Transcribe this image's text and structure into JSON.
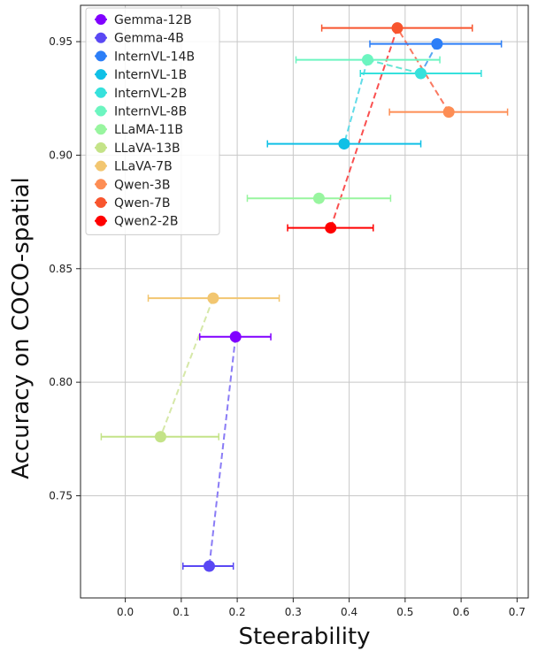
{
  "chart_data": {
    "type": "scatter",
    "title": "",
    "xlabel": "Steerability",
    "ylabel": "Accuracy on COCO-spatial",
    "xlim": [
      -0.08,
      0.72
    ],
    "ylim": [
      0.705,
      0.966
    ],
    "xticks": [
      0.0,
      0.1,
      0.2,
      0.3,
      0.4,
      0.5,
      0.6,
      0.7
    ],
    "xtick_labels": [
      "0.0",
      "0.1",
      "0.2",
      "0.3",
      "0.4",
      "0.5",
      "0.6",
      "0.7"
    ],
    "yticks": [
      0.75,
      0.8,
      0.85,
      0.9,
      0.95
    ],
    "ytick_labels": [
      "0.75",
      "0.80",
      "0.85",
      "0.90",
      "0.95"
    ],
    "grid": true,
    "legend_position": "top-left",
    "series": [
      {
        "name": "Gemma-12B",
        "color": "#8000ff",
        "x": 0.197,
        "y": 0.82,
        "xerr_low": 0.133,
        "xerr_high": 0.26
      },
      {
        "name": "Gemma-4B",
        "color": "#5a48f4",
        "x": 0.15,
        "y": 0.719,
        "xerr_low": 0.103,
        "xerr_high": 0.193
      },
      {
        "name": "InternVL-14B",
        "color": "#2c7ef7",
        "x": 0.557,
        "y": 0.949,
        "xerr_low": 0.437,
        "xerr_high": 0.672
      },
      {
        "name": "InternVL-1B",
        "color": "#10c0e6",
        "x": 0.391,
        "y": 0.905,
        "xerr_low": 0.254,
        "xerr_high": 0.528
      },
      {
        "name": "InternVL-2B",
        "color": "#36e1dc",
        "x": 0.528,
        "y": 0.936,
        "xerr_low": 0.42,
        "xerr_high": 0.636
      },
      {
        "name": "InternVL-8B",
        "color": "#6cf5c0",
        "x": 0.433,
        "y": 0.942,
        "xerr_low": 0.305,
        "xerr_high": 0.562
      },
      {
        "name": "LLaMA-11B",
        "color": "#98f59f",
        "x": 0.346,
        "y": 0.881,
        "xerr_low": 0.218,
        "xerr_high": 0.474
      },
      {
        "name": "LLaVA-13B",
        "color": "#c4e388",
        "x": 0.063,
        "y": 0.776,
        "xerr_low": -0.043,
        "xerr_high": 0.167
      },
      {
        "name": "LLaVA-7B",
        "color": "#f2c670",
        "x": 0.157,
        "y": 0.837,
        "xerr_low": 0.041,
        "xerr_high": 0.275
      },
      {
        "name": "Qwen-3B",
        "color": "#fd8d54",
        "x": 0.578,
        "y": 0.919,
        "xerr_low": 0.472,
        "xerr_high": 0.683
      },
      {
        "name": "Qwen-7B",
        "color": "#f8552e",
        "x": 0.486,
        "y": 0.956,
        "xerr_low": 0.351,
        "xerr_high": 0.62
      },
      {
        "name": "Qwen2-2B",
        "color": "#ff0000",
        "x": 0.367,
        "y": 0.868,
        "xerr_low": 0.29,
        "xerr_high": 0.443
      }
    ],
    "connectors": [
      {
        "from": "Gemma-12B",
        "to": "Gemma-4B",
        "color": "#8a7cf6"
      },
      {
        "from": "LLaVA-7B",
        "to": "LLaVA-13B",
        "color": "#d6e8a8"
      },
      {
        "from": "InternVL-14B",
        "to": "InternVL-2B",
        "color": "#5aa8f2"
      },
      {
        "from": "InternVL-2B",
        "to": "InternVL-8B",
        "color": "#62e6d4"
      },
      {
        "from": "InternVL-8B",
        "to": "InternVL-1B",
        "color": "#62dce8"
      },
      {
        "from": "Qwen-3B",
        "to": "Qwen-7B",
        "color": "#fa7860"
      },
      {
        "from": "Qwen-7B",
        "to": "Qwen2-2B",
        "color": "#fa5050"
      }
    ]
  }
}
